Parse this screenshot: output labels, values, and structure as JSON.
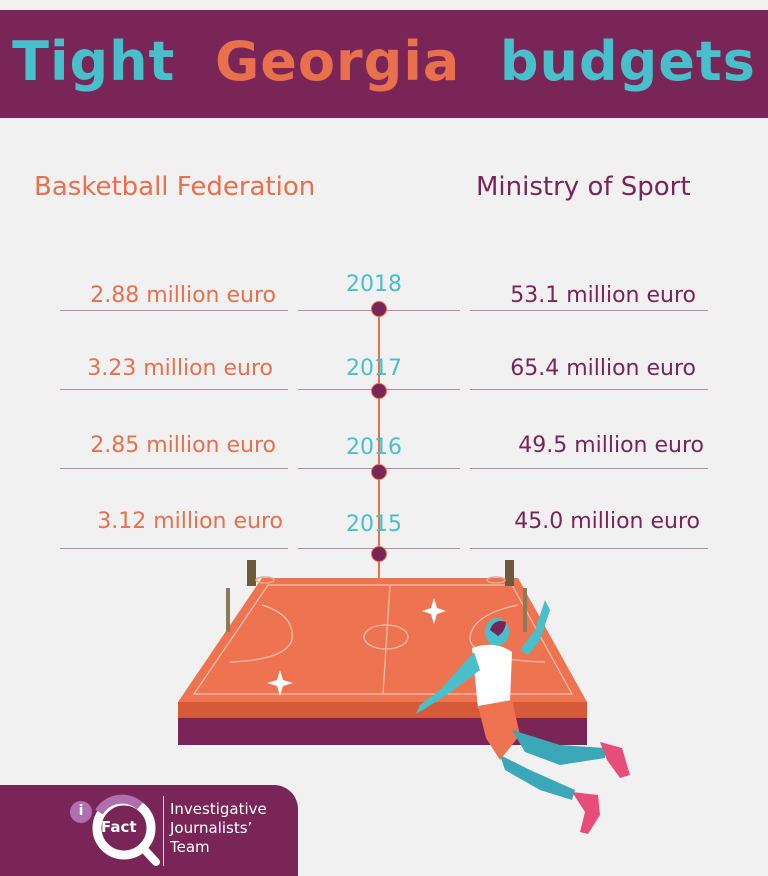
{
  "title": {
    "part1": "Tight",
    "part2": "Georgia",
    "part3": "budgets"
  },
  "colors": {
    "purple": "#7a2557",
    "orange": "#e8704c",
    "teal": "#48c0cc",
    "background": "#f1f1f1"
  },
  "columns": {
    "left": "Basketball Federation",
    "right": "Ministry of Sport"
  },
  "rows": [
    {
      "year": "2018",
      "federation": "2.88 million euro",
      "ministry": "53.1 million euro"
    },
    {
      "year": "2017",
      "federation": "3.23 million euro",
      "ministry": "65.4 million euro"
    },
    {
      "year": "2016",
      "federation": "2.85 million euro",
      "ministry": "49.5 million euro"
    },
    {
      "year": "2015",
      "federation": "3.12 million euro",
      "ministry": "45.0 million euro"
    }
  ],
  "logo": {
    "i": "i",
    "fact": "Fact",
    "line1": "Investigative",
    "line2": "Journalists’",
    "line3": "Team"
  }
}
